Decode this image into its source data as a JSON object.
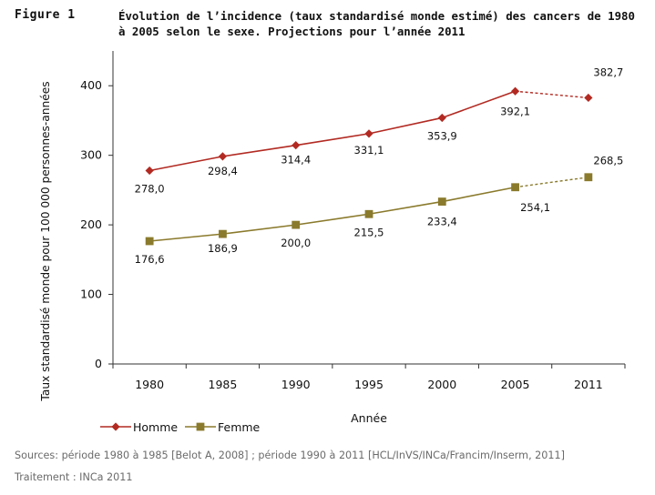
{
  "figure": {
    "label": "Figure 1",
    "title": "Évolution de l’incidence (taux standardisé monde estimé) des cancers de 1980 à 2005 selon le sexe. Projections pour l’année 2011"
  },
  "chart_data": {
    "type": "line",
    "title": "",
    "xlabel": "Année",
    "ylabel": "Taux standardisé monde pour 100 000 personnes-années",
    "categories": [
      "1980",
      "1985",
      "1990",
      "1995",
      "2000",
      "2005",
      "2011"
    ],
    "ylim": [
      0,
      450
    ],
    "yticks": [
      0,
      100,
      200,
      300,
      400
    ],
    "grid": false,
    "legend_position": "bottom-left",
    "series": [
      {
        "name": "Homme",
        "color": "#b22a22",
        "marker": "diamond",
        "values": [
          278.0,
          298.4,
          314.4,
          331.1,
          353.9,
          392.1,
          382.7
        ],
        "labels": [
          "278,0",
          "298,4",
          "314,4",
          "331,1",
          "353,9",
          "392,1",
          "382,7"
        ],
        "projection_from_index": 5
      },
      {
        "name": "Femme",
        "color": "#8a7a2c",
        "marker": "square",
        "values": [
          176.6,
          186.9,
          200.0,
          215.5,
          233.4,
          254.1,
          268.5
        ],
        "labels": [
          "176,6",
          "186,9",
          "200,0",
          "215,5",
          "233,4",
          "254,1",
          "268,5"
        ],
        "projection_from_index": 5
      }
    ]
  },
  "sources": {
    "line1": "Sources: période 1980 à 1985 [Belot A, 2008] ; période 1990 à 2011 [HCL/InVS/INCa/Francim/Inserm, 2011]",
    "line2": "Traitement : INCa 2011"
  }
}
